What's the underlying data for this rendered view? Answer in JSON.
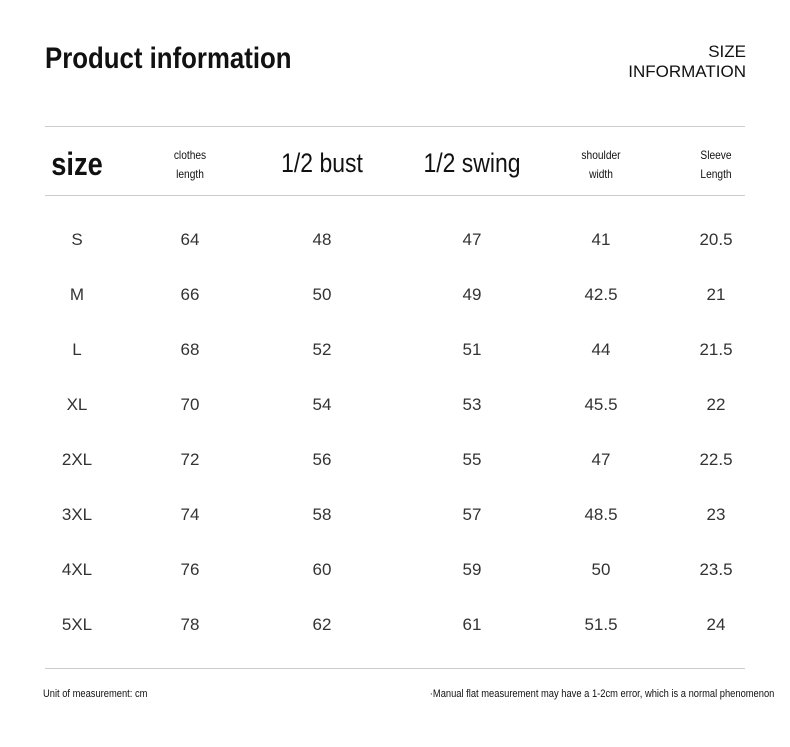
{
  "header": {
    "title": "Product information",
    "side_title": [
      "SIZE",
      "INFORMATION"
    ]
  },
  "table": {
    "columns": [
      [
        "size"
      ],
      [
        "clothes",
        "length"
      ],
      [
        "1/2 bust"
      ],
      [
        "1/2 swing"
      ],
      [
        "shoulder",
        "width"
      ],
      [
        "Sleeve",
        "Length"
      ]
    ],
    "rows": [
      [
        "S",
        "64",
        "48",
        "47",
        "41",
        "20.5"
      ],
      [
        "M",
        "66",
        "50",
        "49",
        "42.5",
        "21"
      ],
      [
        "L",
        "68",
        "52",
        "51",
        "44",
        "21.5"
      ],
      [
        "XL",
        "70",
        "54",
        "53",
        "45.5",
        "22"
      ],
      [
        "2XL",
        "72",
        "56",
        "55",
        "47",
        "22.5"
      ],
      [
        "3XL",
        "74",
        "58",
        "57",
        "48.5",
        "23"
      ],
      [
        "4XL",
        "76",
        "60",
        "59",
        "50",
        "23.5"
      ],
      [
        "5XL",
        "78",
        "62",
        "61",
        "51.5",
        "24"
      ]
    ]
  },
  "footer": {
    "unit_note": "Unit of measurement: cm",
    "error_note": "·Manual flat measurement may have a 1-2cm error, which is a normal phenomenon"
  }
}
